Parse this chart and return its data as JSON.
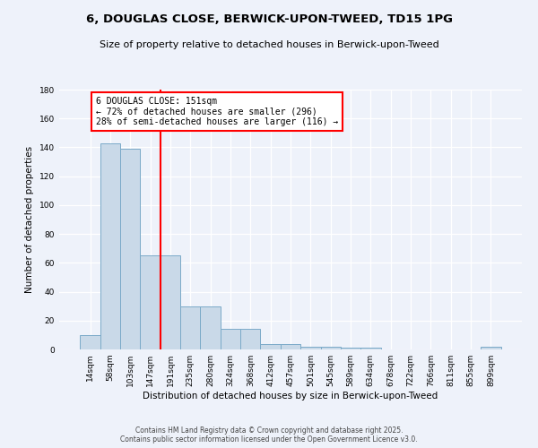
{
  "title": "6, DOUGLAS CLOSE, BERWICK-UPON-TWEED, TD15 1PG",
  "subtitle": "Size of property relative to detached houses in Berwick-upon-Tweed",
  "xlabel": "Distribution of detached houses by size in Berwick-upon-Tweed",
  "ylabel": "Number of detached properties",
  "categories": [
    "14sqm",
    "58sqm",
    "103sqm",
    "147sqm",
    "191sqm",
    "235sqm",
    "280sqm",
    "324sqm",
    "368sqm",
    "412sqm",
    "457sqm",
    "501sqm",
    "545sqm",
    "589sqm",
    "634sqm",
    "678sqm",
    "722sqm",
    "766sqm",
    "811sqm",
    "855sqm",
    "899sqm"
  ],
  "values": [
    10,
    143,
    139,
    65,
    65,
    30,
    30,
    14,
    14,
    4,
    4,
    2,
    2,
    1,
    1,
    0,
    0,
    0,
    0,
    0,
    2
  ],
  "bar_color": "#c9d9e8",
  "bar_edge_color": "#7aaac8",
  "annotation_text": "6 DOUGLAS CLOSE: 151sqm\n← 72% of detached houses are smaller (296)\n28% of semi-detached houses are larger (116) →",
  "annotation_box_color": "white",
  "annotation_box_edge_color": "red",
  "red_line_color": "red",
  "red_line_x": 3.5,
  "ylim": [
    0,
    180
  ],
  "yticks": [
    0,
    20,
    40,
    60,
    80,
    100,
    120,
    140,
    160,
    180
  ],
  "bg_color": "#eef2fa",
  "grid_color": "white",
  "footer_line1": "Contains HM Land Registry data © Crown copyright and database right 2025.",
  "footer_line2": "Contains public sector information licensed under the Open Government Licence v3.0."
}
